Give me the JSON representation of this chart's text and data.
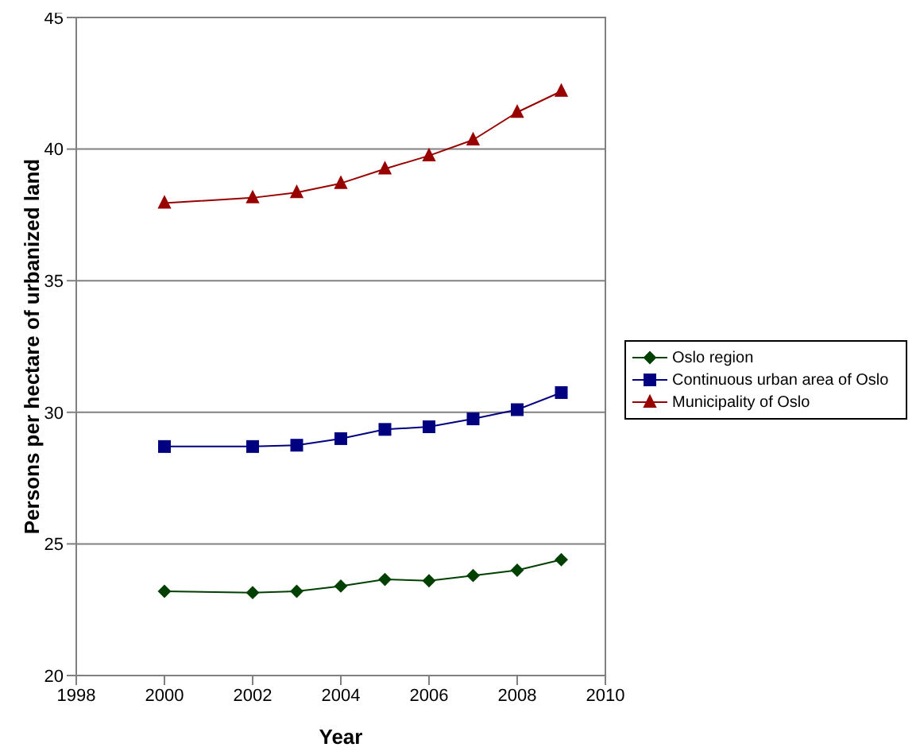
{
  "chart_data": {
    "type": "line",
    "xlabel": "Year",
    "ylabel": "Persons per hectare of urbanized land",
    "x": [
      2000,
      2002,
      2003,
      2004,
      2005,
      2006,
      2007,
      2008,
      2009
    ],
    "xlim": [
      1998,
      2010
    ],
    "xticks": [
      1998,
      2000,
      2002,
      2004,
      2006,
      2008,
      2010
    ],
    "ylim": [
      20,
      45
    ],
    "yticks": [
      20,
      25,
      30,
      35,
      40,
      45
    ],
    "grid": "y",
    "legend": "right",
    "line_style": "solid",
    "series": [
      {
        "name": "Oslo region",
        "color": "#004000",
        "marker": "diamond",
        "values": [
          23.2,
          23.15,
          23.2,
          23.4,
          23.65,
          23.6,
          23.8,
          24.0,
          24.4
        ]
      },
      {
        "name": "Continuous urban area of Oslo",
        "color": "#000080",
        "marker": "square",
        "values": [
          28.7,
          28.7,
          28.75,
          29.0,
          29.35,
          29.45,
          29.75,
          30.1,
          30.75
        ]
      },
      {
        "name": "Municipality of Oslo",
        "color": "#990000",
        "marker": "triangle",
        "values": [
          37.95,
          38.15,
          38.35,
          38.7,
          39.25,
          39.75,
          40.35,
          41.4,
          42.2
        ]
      }
    ]
  }
}
